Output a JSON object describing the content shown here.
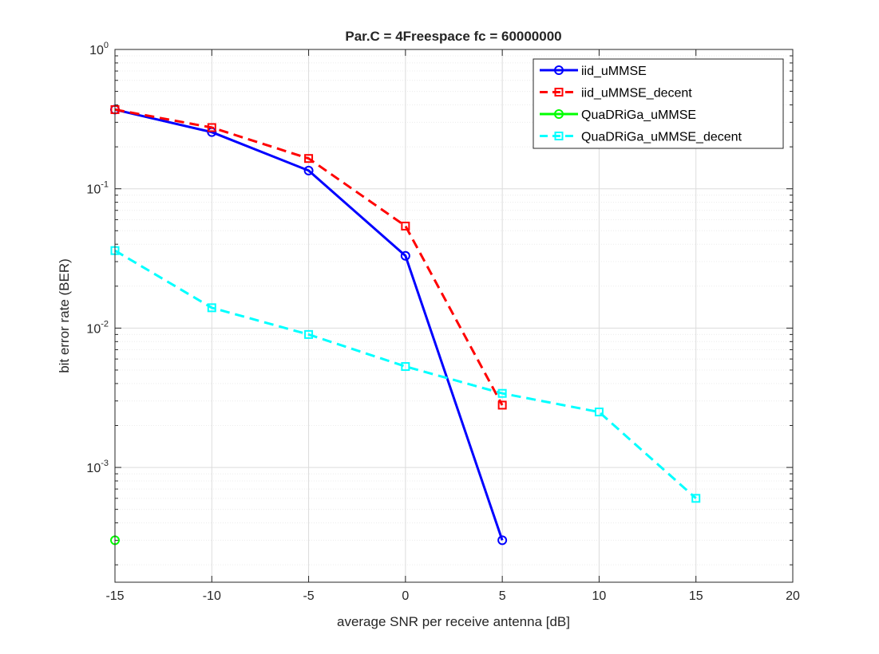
{
  "chart_data": {
    "type": "line",
    "title": "Par.C = 4Freespace fc = 60000000",
    "xlabel": "average SNR per receive antenna [dB]",
    "ylabel": "bit error rate (BER)",
    "xlim": [
      -15,
      20
    ],
    "ylim": [
      0.00015,
      1
    ],
    "yscale": "log",
    "x_ticks": [
      "-15",
      "-10",
      "-5",
      "0",
      "5",
      "10",
      "15",
      "20"
    ],
    "x_tick_values": [
      -15,
      -10,
      -5,
      0,
      5,
      10,
      15,
      20
    ],
    "y_ticks": [
      {
        "base": "10",
        "exp": "-3",
        "value": 0.001
      },
      {
        "base": "10",
        "exp": "-2",
        "value": 0.01
      },
      {
        "base": "10",
        "exp": "-1",
        "value": 0.1
      },
      {
        "base": "10",
        "exp": "0",
        "value": 1
      }
    ],
    "grid": true,
    "minor_grid": true,
    "legend_position": "top-right",
    "series": [
      {
        "name": "iid_uMMSE",
        "color": "#0000ff",
        "line": "solid",
        "marker": "circle",
        "x": [
          -15,
          -10,
          -5,
          0,
          5
        ],
        "y": [
          0.37,
          0.255,
          0.135,
          0.033,
          0.0003
        ]
      },
      {
        "name": "iid_uMMSE_decent",
        "color": "#ff0000",
        "line": "dashed",
        "marker": "square",
        "x": [
          -15,
          -10,
          -5,
          0,
          5
        ],
        "y": [
          0.37,
          0.275,
          0.165,
          0.054,
          0.0028
        ]
      },
      {
        "name": "QuaDRiGa_uMMSE",
        "color": "#00ff00",
        "line": "solid",
        "marker": "circle",
        "x": [
          -15
        ],
        "y": [
          0.0003
        ]
      },
      {
        "name": "QuaDRiGa_uMMSE_decent",
        "color": "#00ffff",
        "line": "dashed",
        "marker": "square",
        "x": [
          -15,
          -10,
          -5,
          0,
          5,
          10,
          15
        ],
        "y": [
          0.036,
          0.014,
          0.009,
          0.0053,
          0.0034,
          0.0025,
          0.0006
        ]
      }
    ]
  }
}
